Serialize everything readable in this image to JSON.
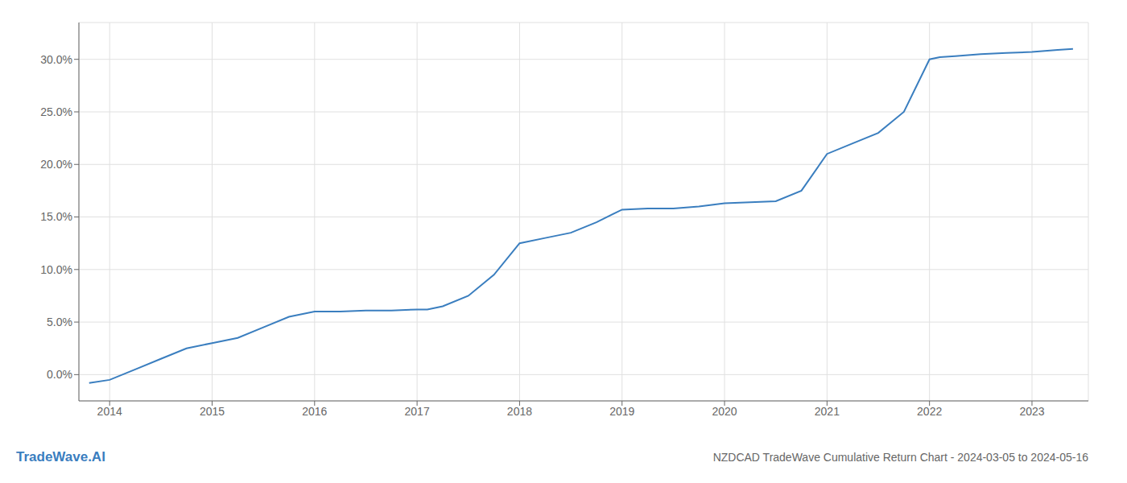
{
  "chart_data": {
    "type": "line",
    "title": "NZDCAD TradeWave Cumulative Return Chart - 2024-03-05 to 2024-05-16",
    "annotations": [
      "TradeWave.AI"
    ],
    "color": "#3a7ebf",
    "grid": true,
    "x": [
      2013.8,
      2014.0,
      2014.25,
      2014.5,
      2014.75,
      2015.0,
      2015.25,
      2015.5,
      2015.75,
      2016.0,
      2016.25,
      2016.5,
      2016.75,
      2017.0,
      2017.1,
      2017.25,
      2017.5,
      2017.75,
      2018.0,
      2018.25,
      2018.5,
      2018.75,
      2019.0,
      2019.25,
      2019.5,
      2019.75,
      2020.0,
      2020.25,
      2020.5,
      2020.75,
      2021.0,
      2021.25,
      2021.5,
      2021.75,
      2022.0,
      2022.1,
      2022.25,
      2022.5,
      2022.75,
      2023.0,
      2023.25,
      2023.4
    ],
    "values": [
      -0.8,
      -0.5,
      0.5,
      1.5,
      2.5,
      3.0,
      3.5,
      4.5,
      5.5,
      6.0,
      6.0,
      6.1,
      6.1,
      6.2,
      6.2,
      6.5,
      7.5,
      9.5,
      12.5,
      13.0,
      13.5,
      14.5,
      15.7,
      15.8,
      15.8,
      16.0,
      16.3,
      16.4,
      16.5,
      17.5,
      21.0,
      22.0,
      23.0,
      25.0,
      30.0,
      30.2,
      30.3,
      30.5,
      30.6,
      30.7,
      30.9,
      31.0
    ],
    "xlim": [
      2013.7,
      2023.55
    ],
    "ylim": [
      -2.5,
      33.5
    ],
    "xticks": [
      2014,
      2015,
      2016,
      2017,
      2018,
      2019,
      2020,
      2021,
      2022,
      2023
    ],
    "yticks": [
      {
        "value": 0.0,
        "label": "0.0%"
      },
      {
        "value": 5.0,
        "label": "5.0%"
      },
      {
        "value": 10.0,
        "label": "10.0%"
      },
      {
        "value": 15.0,
        "label": "15.0%"
      },
      {
        "value": 20.0,
        "label": "20.0%"
      },
      {
        "value": 25.0,
        "label": "25.0%"
      },
      {
        "value": 30.0,
        "label": "30.0%"
      }
    ]
  }
}
